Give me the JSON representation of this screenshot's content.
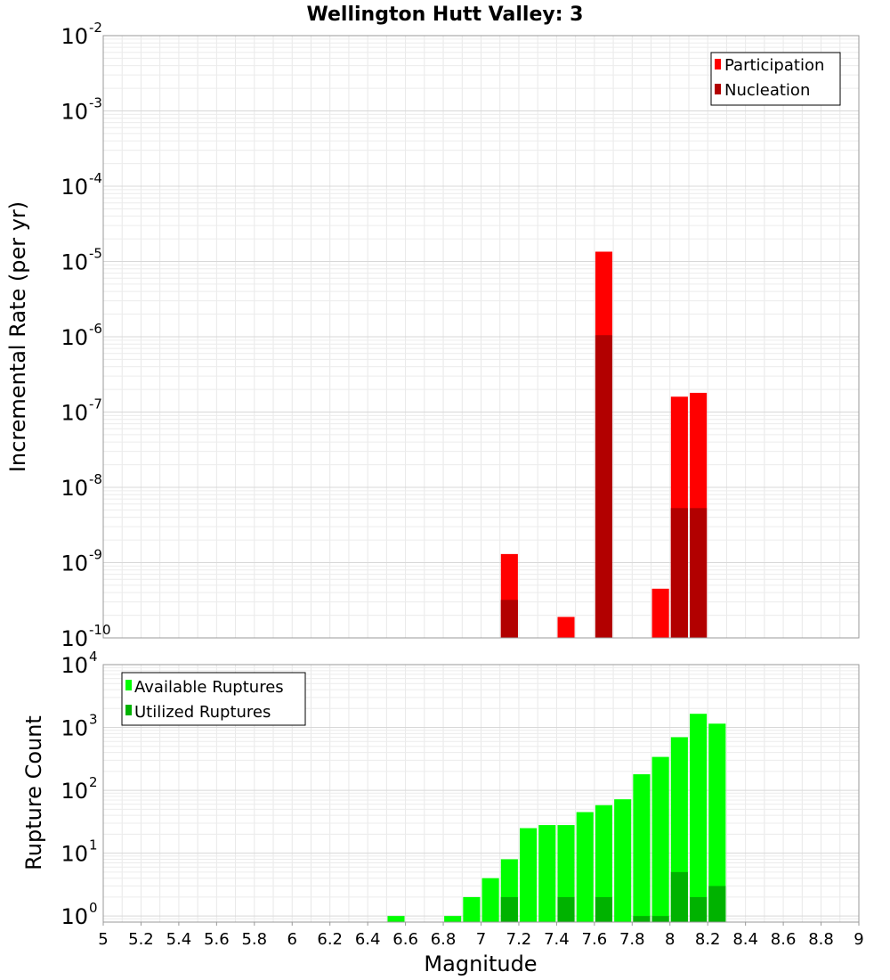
{
  "chart_data": [
    {
      "type": "bar",
      "title": "Wellington Hutt Valley: 3",
      "xlabel": "",
      "ylabel": "Incremental Rate (per yr)",
      "y_scale": "log",
      "xlim": [
        5,
        9
      ],
      "ylim": [
        1e-10,
        0.01
      ],
      "y_ticks": [
        {
          "base": "10",
          "exp": "-10",
          "value": 1e-10
        },
        {
          "base": "10",
          "exp": "-9",
          "value": 1e-09
        },
        {
          "base": "10",
          "exp": "-8",
          "value": 1e-08
        },
        {
          "base": "10",
          "exp": "-7",
          "value": 1e-07
        },
        {
          "base": "10",
          "exp": "-6",
          "value": 1e-06
        },
        {
          "base": "10",
          "exp": "-5",
          "value": 1e-05
        },
        {
          "base": "10",
          "exp": "-4",
          "value": 0.0001
        },
        {
          "base": "10",
          "exp": "-3",
          "value": 0.001
        },
        {
          "base": "10",
          "exp": "-2",
          "value": 0.01
        }
      ],
      "legend_position": "top-right",
      "series": [
        {
          "name": "Participation",
          "color": "#ff0000",
          "x": [
            7.15,
            7.45,
            7.65,
            7.95,
            8.05,
            8.15
          ],
          "values": [
            1.3e-09,
            1.9e-10,
            1.35e-05,
            4.5e-10,
            1.6e-07,
            1.8e-07
          ]
        },
        {
          "name": "Nucleation",
          "color": "#b20000",
          "x": [
            7.15,
            7.65,
            8.05,
            8.15
          ],
          "values": [
            3.2e-10,
            1.05e-06,
            5.3e-09,
            5.3e-09
          ]
        }
      ]
    },
    {
      "type": "bar",
      "title": "",
      "xlabel": "Magnitude",
      "ylabel": "Rupture Count",
      "y_scale": "log",
      "xlim": [
        5,
        9
      ],
      "ylim": [
        0.8,
        10000
      ],
      "y_ticks": [
        {
          "base": "10",
          "exp": "0",
          "value": 1
        },
        {
          "base": "10",
          "exp": "1",
          "value": 10
        },
        {
          "base": "10",
          "exp": "2",
          "value": 100
        },
        {
          "base": "10",
          "exp": "3",
          "value": 1000
        },
        {
          "base": "10",
          "exp": "4",
          "value": 10000
        }
      ],
      "x_ticks": [
        "5",
        "5.2",
        "5.4",
        "5.6",
        "5.8",
        "6",
        "6.2",
        "6.4",
        "6.6",
        "6.8",
        "7",
        "7.2",
        "7.4",
        "7.6",
        "7.8",
        "8",
        "8.2",
        "8.4",
        "8.6",
        "8.8",
        "9"
      ],
      "legend_position": "top-left",
      "series": [
        {
          "name": "Available Ruptures",
          "color": "#00ff00",
          "x": [
            6.55,
            6.85,
            6.95,
            7.05,
            7.15,
            7.25,
            7.35,
            7.45,
            7.55,
            7.65,
            7.75,
            7.85,
            7.95,
            8.05,
            8.15,
            8.25
          ],
          "values": [
            1,
            1,
            2,
            4,
            8,
            25,
            28,
            28,
            45,
            58,
            72,
            180,
            340,
            700,
            1650,
            1150
          ]
        },
        {
          "name": "Utilized Ruptures",
          "color": "#00b200",
          "x": [
            7.15,
            7.45,
            7.65,
            7.85,
            7.95,
            8.05,
            8.15,
            8.25
          ],
          "values": [
            2,
            2,
            2,
            1,
            1,
            5,
            2,
            3
          ]
        }
      ]
    }
  ]
}
